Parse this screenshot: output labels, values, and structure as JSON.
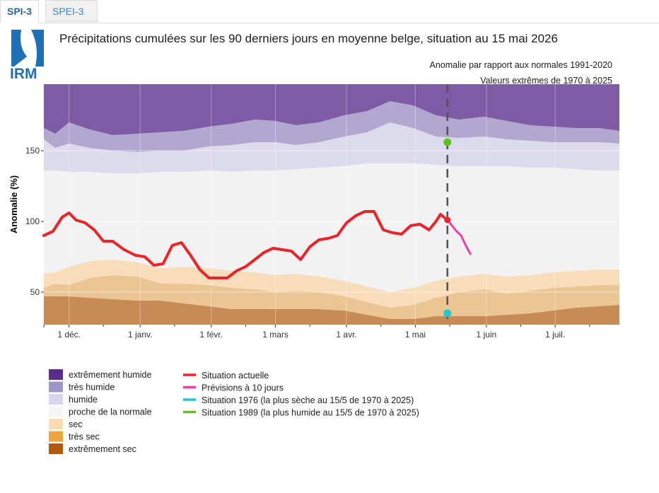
{
  "tabs": [
    {
      "label": "SPI-3",
      "active": true
    },
    {
      "label": "SPEI-3",
      "active": false
    }
  ],
  "logo": {
    "text": "IRM",
    "color": "#1f6fb4"
  },
  "chart_data": {
    "type": "area",
    "title": "Précipitations cumulées sur les 90 derniers jours en moyenne belge, situation au 15 mai 2026",
    "subtitle_lines": [
      "Anomalie par rapport aux normales 1991-2020",
      "Valeurs extrêmes de 1970 à 2025"
    ],
    "ylabel": "Anomalie (%)",
    "xlabel": "",
    "ylim": [
      27,
      197
    ],
    "yticks": [
      50,
      100,
      150
    ],
    "xlim": [
      "2025-11-20",
      "2026-07-29"
    ],
    "xticks": [
      {
        "date": "2025-12-01",
        "label": "1 déc."
      },
      {
        "date": "2026-01-01",
        "label": "1 janv."
      },
      {
        "date": "2026-02-01",
        "label": "1 févr."
      },
      {
        "date": "2026-03-01",
        "label": "1 mars"
      },
      {
        "date": "2026-04-01",
        "label": "1 avr."
      },
      {
        "date": "2026-05-01",
        "label": "1 mai"
      },
      {
        "date": "2026-06-01",
        "label": "1 juin"
      },
      {
        "date": "2026-07-01",
        "label": "1 juil."
      }
    ],
    "current_date": "2026-05-15",
    "grid": true,
    "bands": {
      "dates": [
        "2025-11-20",
        "2025-11-25",
        "2025-12-01",
        "2025-12-10",
        "2025-12-20",
        "2025-12-31",
        "2026-01-10",
        "2026-01-20",
        "2026-01-31",
        "2026-02-10",
        "2026-02-20",
        "2026-03-01",
        "2026-03-10",
        "2026-03-20",
        "2026-03-31",
        "2026-04-10",
        "2026-04-20",
        "2026-04-30",
        "2026-05-10",
        "2026-05-20",
        "2026-05-31",
        "2026-06-10",
        "2026-06-20",
        "2026-06-30",
        "2026-07-10",
        "2026-07-20",
        "2026-07-29"
      ],
      "min": [
        47,
        47,
        47,
        46,
        45,
        44,
        44,
        42,
        40,
        38,
        38,
        38,
        38,
        38,
        37,
        34,
        31,
        31,
        33,
        33,
        33,
        34,
        35,
        37,
        39,
        40,
        41
      ],
      "p05": [
        53,
        56,
        55,
        60,
        62,
        61,
        56,
        56,
        55,
        53,
        52,
        50,
        51,
        50,
        47,
        43,
        39,
        41,
        46,
        50,
        52,
        49,
        51,
        53,
        54,
        55,
        55
      ],
      "p20": [
        63,
        64,
        68,
        72,
        73,
        71,
        67,
        68,
        67,
        65,
        64,
        62,
        63,
        61,
        58,
        54,
        50,
        53,
        58,
        61,
        63,
        61,
        62,
        64,
        65,
        66,
        66
      ],
      "p80": [
        136,
        136,
        135,
        135,
        134,
        134,
        135,
        135,
        136,
        135,
        136,
        136,
        137,
        138,
        139,
        141,
        141,
        141,
        140,
        139,
        139,
        139,
        138,
        138,
        137,
        136,
        136
      ],
      "p95": [
        158,
        152,
        155,
        152,
        150,
        149,
        150,
        150,
        153,
        154,
        156,
        156,
        154,
        156,
        160,
        163,
        170,
        166,
        160,
        159,
        160,
        158,
        157,
        156,
        156,
        156,
        155
      ],
      "p99": [
        166,
        162,
        170,
        165,
        161,
        162,
        163,
        164,
        167,
        169,
        172,
        171,
        168,
        170,
        175,
        178,
        185,
        182,
        175,
        172,
        174,
        171,
        168,
        167,
        166,
        166,
        164
      ],
      "max": [
        197,
        197,
        197,
        197,
        197,
        197,
        197,
        197,
        197,
        197,
        197,
        197,
        197,
        197,
        197,
        197,
        197,
        197,
        197,
        197,
        197,
        197,
        197,
        197,
        197,
        197,
        197
      ]
    },
    "series": [
      {
        "name": "Situation actuelle",
        "color": "#e8262a",
        "x": [
          "2025-11-20",
          "2025-11-24",
          "2025-11-28",
          "2025-12-01",
          "2025-12-04",
          "2025-12-08",
          "2025-12-12",
          "2025-12-16",
          "2025-12-20",
          "2025-12-25",
          "2025-12-30",
          "2026-01-03",
          "2026-01-07",
          "2026-01-11",
          "2026-01-15",
          "2026-01-19",
          "2026-01-23",
          "2026-01-27",
          "2026-01-31",
          "2026-02-04",
          "2026-02-08",
          "2026-02-12",
          "2026-02-16",
          "2026-02-20",
          "2026-02-24",
          "2026-02-28",
          "2026-03-04",
          "2026-03-08",
          "2026-03-12",
          "2026-03-16",
          "2026-03-20",
          "2026-03-24",
          "2026-03-28",
          "2026-04-01",
          "2026-04-05",
          "2026-04-09",
          "2026-04-13",
          "2026-04-17",
          "2026-04-21",
          "2026-04-25",
          "2026-04-29",
          "2026-05-03",
          "2026-05-07",
          "2026-05-10",
          "2026-05-12",
          "2026-05-15"
        ],
        "y": [
          90,
          93,
          103,
          106,
          101,
          99,
          94,
          86,
          86,
          80,
          76,
          75,
          69,
          70,
          83,
          85,
          76,
          66,
          60,
          60,
          60,
          65,
          68,
          73,
          78,
          81,
          80,
          79,
          73,
          82,
          87,
          88,
          90,
          99,
          104,
          107,
          107,
          94,
          92,
          91,
          97,
          98,
          94,
          100,
          105,
          101
        ]
      },
      {
        "name": "Prévisions à 10 jours",
        "color": "#ee3fa8",
        "x": [
          "2026-05-15",
          "2026-05-17",
          "2026-05-19",
          "2026-05-21",
          "2026-05-23",
          "2026-05-25"
        ],
        "y": [
          101,
          97,
          93,
          90,
          83,
          77
        ]
      },
      {
        "name": "Situation 1976 (la plus sèche au 15/5 de 1970 à 2025)",
        "color": "#1ec8d4",
        "x": [
          "2026-05-15"
        ],
        "y": [
          35
        ]
      },
      {
        "name": "Situation 1989 (la plus humide au 15/5 de 1970 à 2025)",
        "color": "#5bc51d",
        "x": [
          "2026-05-15"
        ],
        "y": [
          156
        ]
      }
    ],
    "band_legend": [
      {
        "label": "extrêmement humide",
        "color": "#7f5ba6"
      },
      {
        "label": "très humide",
        "color": "#b2a7cf"
      },
      {
        "label": "humide",
        "color": "#dcdbeb"
      },
      {
        "label": "proche de la normale",
        "color": "#f2f2f2"
      },
      {
        "label": "sec",
        "color": "#f8ddbb"
      },
      {
        "label": "très sec",
        "color": "#ebc594"
      },
      {
        "label": "extrêmement sec",
        "color": "#c78c55"
      }
    ],
    "legend_swatches": [
      "#5b2a91",
      "#9f96c8",
      "#d8d6ec",
      "#f5f5f5",
      "#f8dcb2",
      "#f0a640",
      "#b5580f"
    ],
    "legend_placement": "bottom-left"
  }
}
